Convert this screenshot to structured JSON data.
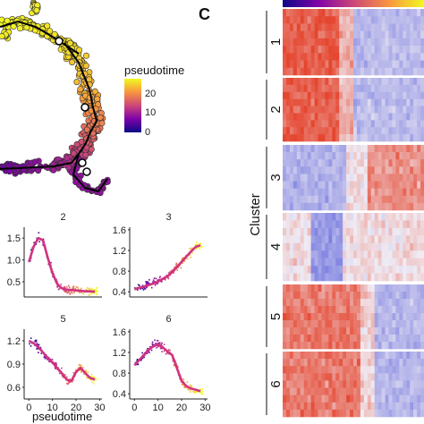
{
  "panel_label": "C",
  "chart_data": [
    {
      "type": "scatter",
      "panel": "trajectory",
      "legend": {
        "title": "pseudotime",
        "ticks": [
          20,
          10,
          0
        ],
        "colormap": "plasma",
        "range": [
          0,
          28
        ]
      },
      "colors": {
        "low": "#0d0887",
        "mid": "#cc4778",
        "high": "#f0f921"
      }
    },
    {
      "type": "scatter",
      "panel": "expression-vs-pseudotime",
      "xlabel": "pseudotime",
      "xticks": [
        0,
        10,
        20,
        30
      ],
      "xlim": [
        -2,
        31
      ],
      "subplots": [
        {
          "title": "2",
          "ylim": [
            0.15,
            1.75
          ],
          "yticks": [
            "1.5",
            "1.0",
            "0.5"
          ],
          "ytick_values": [
            1.5,
            1.0,
            0.5
          ],
          "x": [
            0,
            2,
            4,
            6,
            8,
            10,
            12,
            14,
            16,
            18,
            20,
            22,
            24,
            26,
            28
          ],
          "trend": [
            0.95,
            1.3,
            1.5,
            1.45,
            1.05,
            0.7,
            0.45,
            0.35,
            0.32,
            0.31,
            0.3,
            0.29,
            0.28,
            0.28,
            0.27
          ]
        },
        {
          "title": "3",
          "ylim": [
            0.3,
            1.65
          ],
          "yticks": [
            "1.6",
            "1.2",
            "0.8",
            "0.4"
          ],
          "ytick_values": [
            1.6,
            1.2,
            0.8,
            0.4
          ],
          "x": [
            0,
            2,
            4,
            6,
            8,
            10,
            12,
            14,
            16,
            18,
            20,
            22,
            24,
            26,
            28
          ],
          "trend": [
            0.45,
            0.48,
            0.5,
            0.53,
            0.56,
            0.6,
            0.65,
            0.7,
            0.78,
            0.88,
            0.98,
            1.08,
            1.18,
            1.27,
            1.3
          ]
        },
        {
          "title": "5",
          "ylim": [
            0.45,
            1.35
          ],
          "yticks": [
            "1.2",
            "0.9",
            "0.6"
          ],
          "ytick_values": [
            1.2,
            0.9,
            0.6
          ],
          "x": [
            0,
            2,
            4,
            6,
            8,
            10,
            12,
            14,
            16,
            18,
            20,
            22,
            24,
            26,
            28
          ],
          "trend": [
            1.2,
            1.17,
            1.12,
            1.05,
            0.98,
            0.92,
            0.85,
            0.78,
            0.7,
            0.68,
            0.8,
            0.85,
            0.78,
            0.72,
            0.7
          ]
        },
        {
          "title": "6",
          "ylim": [
            0.3,
            1.65
          ],
          "yticks": [
            "1.6",
            "1.2",
            "0.8",
            "0.4"
          ],
          "ytick_values": [
            1.6,
            1.2,
            0.8,
            0.4
          ],
          "x": [
            0,
            2,
            4,
            6,
            8,
            10,
            12,
            14,
            16,
            18,
            20,
            22,
            24,
            26,
            28
          ],
          "trend": [
            0.95,
            1.05,
            1.15,
            1.25,
            1.32,
            1.35,
            1.3,
            1.22,
            1.15,
            0.9,
            0.65,
            0.55,
            0.5,
            0.48,
            0.45
          ]
        }
      ]
    },
    {
      "type": "heatmap",
      "panel": "cluster-heatmap",
      "ylabel": "Cluster",
      "clusters": [
        {
          "name": "1",
          "pattern": "early"
        },
        {
          "name": "2",
          "pattern": "early"
        },
        {
          "name": "3",
          "pattern": "late"
        },
        {
          "name": "4",
          "pattern": "mixed"
        },
        {
          "name": "5",
          "pattern": "early-mid"
        },
        {
          "name": "6",
          "pattern": "early-mid"
        }
      ],
      "top_bar_colormap": "plasma",
      "colors": {
        "high": "#e5462f",
        "mid": "#f0ecf4",
        "low": "#7b7fe0"
      }
    }
  ]
}
